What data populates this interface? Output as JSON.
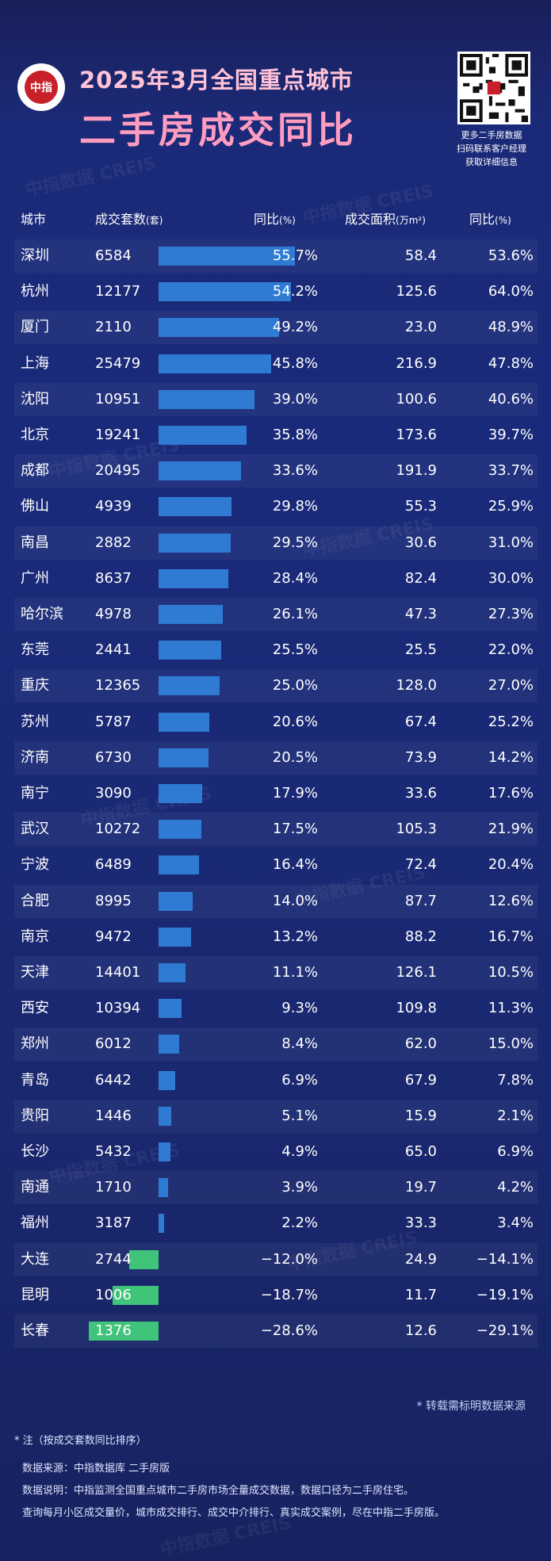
{
  "header": {
    "logo_text": "中指",
    "title_line1": "2025年3月全国重点城市",
    "title_line2": "二手房成交同比",
    "qr_caption": [
      "更多二手房数据",
      "扫码联系客户经理",
      "获取详细信息"
    ]
  },
  "watermark_text": "中指数据 CREIS",
  "columns": {
    "city": "城市",
    "count": "成交套数",
    "count_unit": "(套)",
    "yoy1": "同比",
    "yoy1_unit": "(%)",
    "area": "成交面积",
    "area_unit": "(万m²)",
    "yoy2": "同比",
    "yoy2_unit": "(%)"
  },
  "chart_data": {
    "type": "table",
    "columns": [
      "城市",
      "成交套数(套)",
      "同比(%)",
      "成交面积(万m²)",
      "同比(%)"
    ],
    "rows": [
      {
        "city": "深圳",
        "count": 6584,
        "count_yoy": 55.7,
        "area": 58.4,
        "area_yoy": 53.6
      },
      {
        "city": "杭州",
        "count": 12177,
        "count_yoy": 54.2,
        "area": 125.6,
        "area_yoy": 64.0
      },
      {
        "city": "厦门",
        "count": 2110,
        "count_yoy": 49.2,
        "area": 23.0,
        "area_yoy": 48.9
      },
      {
        "city": "上海",
        "count": 25479,
        "count_yoy": 45.8,
        "area": 216.9,
        "area_yoy": 47.8
      },
      {
        "city": "沈阳",
        "count": 10951,
        "count_yoy": 39.0,
        "area": 100.6,
        "area_yoy": 40.6
      },
      {
        "city": "北京",
        "count": 19241,
        "count_yoy": 35.8,
        "area": 173.6,
        "area_yoy": 39.7
      },
      {
        "city": "成都",
        "count": 20495,
        "count_yoy": 33.6,
        "area": 191.9,
        "area_yoy": 33.7
      },
      {
        "city": "佛山",
        "count": 4939,
        "count_yoy": 29.8,
        "area": 55.3,
        "area_yoy": 25.9
      },
      {
        "city": "南昌",
        "count": 2882,
        "count_yoy": 29.5,
        "area": 30.6,
        "area_yoy": 31.0
      },
      {
        "city": "广州",
        "count": 8637,
        "count_yoy": 28.4,
        "area": 82.4,
        "area_yoy": 30.0
      },
      {
        "city": "哈尔滨",
        "count": 4978,
        "count_yoy": 26.1,
        "area": 47.3,
        "area_yoy": 27.3
      },
      {
        "city": "东莞",
        "count": 2441,
        "count_yoy": 25.5,
        "area": 25.5,
        "area_yoy": 22.0
      },
      {
        "city": "重庆",
        "count": 12365,
        "count_yoy": 25.0,
        "area": 128.0,
        "area_yoy": 27.0
      },
      {
        "city": "苏州",
        "count": 5787,
        "count_yoy": 20.6,
        "area": 67.4,
        "area_yoy": 25.2
      },
      {
        "city": "济南",
        "count": 6730,
        "count_yoy": 20.5,
        "area": 73.9,
        "area_yoy": 14.2
      },
      {
        "city": "南宁",
        "count": 3090,
        "count_yoy": 17.9,
        "area": 33.6,
        "area_yoy": 17.6
      },
      {
        "city": "武汉",
        "count": 10272,
        "count_yoy": 17.5,
        "area": 105.3,
        "area_yoy": 21.9
      },
      {
        "city": "宁波",
        "count": 6489,
        "count_yoy": 16.4,
        "area": 72.4,
        "area_yoy": 20.4
      },
      {
        "city": "合肥",
        "count": 8995,
        "count_yoy": 14.0,
        "area": 87.7,
        "area_yoy": 12.6
      },
      {
        "city": "南京",
        "count": 9472,
        "count_yoy": 13.2,
        "area": 88.2,
        "area_yoy": 16.7
      },
      {
        "city": "天津",
        "count": 14401,
        "count_yoy": 11.1,
        "area": 126.1,
        "area_yoy": 10.5
      },
      {
        "city": "西安",
        "count": 10394,
        "count_yoy": 9.3,
        "area": 109.8,
        "area_yoy": 11.3
      },
      {
        "city": "郑州",
        "count": 6012,
        "count_yoy": 8.4,
        "area": 62.0,
        "area_yoy": 15.0
      },
      {
        "city": "青岛",
        "count": 6442,
        "count_yoy": 6.9,
        "area": 67.9,
        "area_yoy": 7.8
      },
      {
        "city": "贵阳",
        "count": 1446,
        "count_yoy": 5.1,
        "area": 15.9,
        "area_yoy": 2.1
      },
      {
        "city": "长沙",
        "count": 5432,
        "count_yoy": 4.9,
        "area": 65.0,
        "area_yoy": 6.9
      },
      {
        "city": "南通",
        "count": 1710,
        "count_yoy": 3.9,
        "area": 19.7,
        "area_yoy": 4.2
      },
      {
        "city": "福州",
        "count": 3187,
        "count_yoy": 2.2,
        "area": 33.3,
        "area_yoy": 3.4
      },
      {
        "city": "大连",
        "count": 2744,
        "count_yoy": -12.0,
        "area": 24.9,
        "area_yoy": -14.1
      },
      {
        "city": "昆明",
        "count": 1006,
        "count_yoy": -18.7,
        "area": 11.7,
        "area_yoy": -19.1
      },
      {
        "city": "长春",
        "count": 1376,
        "count_yoy": -28.6,
        "area": 12.6,
        "area_yoy": -29.1
      }
    ],
    "colors": {
      "positive_bar": "#2f7bd4",
      "negative_bar": "#3fc47a"
    }
  },
  "footer": {
    "source_note": "* 转载需标明数据来源",
    "note": "* 注（按成交套数同比排序）",
    "data_source": "数据来源：中指数据库 二手房版",
    "data_desc": "数据说明：中指监测全国重点城市二手房市场全量成交数据，数据口径为二手房住宅。",
    "promo": "查询每月小区成交量价，城市成交排行、成交中介排行、真实成交案例，尽在中指二手房版。"
  }
}
